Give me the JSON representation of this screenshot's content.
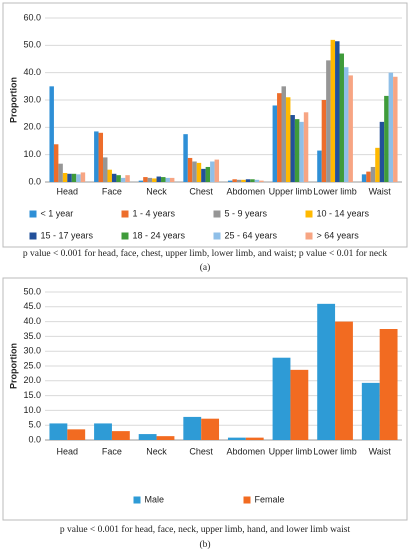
{
  "chart_data": [
    {
      "type": "bar",
      "y_label": "Proportion",
      "categories": [
        "Head",
        "Face",
        "Neck",
        "Chest",
        "Abdomen",
        "Upper limb",
        "Lower limb",
        "Waist"
      ],
      "series": [
        {
          "name": "< 1 year",
          "color": "#2e8fd6",
          "values": [
            35,
            18.5,
            0.5,
            17.5,
            0.5,
            28,
            11.5,
            2.8
          ]
        },
        {
          "name": "1 - 4 years",
          "color": "#ed6d2b",
          "values": [
            13.8,
            18,
            1.8,
            8.8,
            1,
            32.5,
            30,
            3.8
          ]
        },
        {
          "name": "5 - 9 years",
          "color": "#969696",
          "values": [
            6.7,
            9,
            1.5,
            7.5,
            0.8,
            35,
            44.5,
            5.5
          ]
        },
        {
          "name": "10 - 14 years",
          "color": "#ffb900",
          "values": [
            3.3,
            4.5,
            1.3,
            7,
            0.8,
            31,
            52,
            12.5
          ]
        },
        {
          "name": "15 - 17 years",
          "color": "#22509a",
          "values": [
            3,
            3,
            2,
            4.8,
            1,
            24.5,
            51.5,
            22
          ]
        },
        {
          "name": "18 - 24 years",
          "color": "#3f9b3a",
          "values": [
            3,
            2.5,
            1.8,
            5.5,
            1,
            23,
            47,
            31.5
          ]
        },
        {
          "name": "25 - 64 years",
          "color": "#8fbfe8",
          "values": [
            2.8,
            1.5,
            1.5,
            7.5,
            0.8,
            22,
            42,
            40
          ]
        },
        {
          "name": "> 64 years",
          "color": "#f7a583",
          "values": [
            3.5,
            2.5,
            1.5,
            8.2,
            0.5,
            25.5,
            39,
            38.5
          ]
        }
      ],
      "ylim": [
        0,
        60
      ],
      "yticks": [
        {
          "value": 0,
          "label": "0.0"
        },
        {
          "value": 10,
          "label": "10.0"
        },
        {
          "value": 20,
          "label": "20.0"
        },
        {
          "value": 30,
          "label": "30.0"
        },
        {
          "value": 40,
          "label": "40.0"
        },
        {
          "value": 50,
          "label": "50.0"
        },
        {
          "value": 60,
          "label": "60.0"
        }
      ],
      "grid": true,
      "legend": "bottom",
      "caption": "p value < 0.001 for head, face, chest, upper limb, lower limb, and waist; p value < 0.01 for neck",
      "panel_label": "(a)"
    },
    {
      "type": "bar",
      "y_label": "Proportion",
      "categories": [
        "Head",
        "Face",
        "Neck",
        "Chest",
        "Abdomen",
        "Upper limb",
        "Lower limb",
        "Waist"
      ],
      "series": [
        {
          "name": "Male",
          "color": "#2e9bd6",
          "values": [
            5.6,
            5.6,
            2,
            7.8,
            0.8,
            27.8,
            46,
            19.3
          ]
        },
        {
          "name": "Female",
          "color": "#f26b21",
          "values": [
            3.6,
            3,
            1.3,
            7.2,
            0.8,
            23.7,
            40,
            37.5
          ]
        }
      ],
      "ylim": [
        0,
        50
      ],
      "yticks": [
        {
          "value": 0,
          "label": "0.0"
        },
        {
          "value": 5,
          "label": "5.0"
        },
        {
          "value": 10,
          "label": "10.0"
        },
        {
          "value": 15,
          "label": "15.0"
        },
        {
          "value": 20,
          "label": "20.0"
        },
        {
          "value": 25,
          "label": "25.0"
        },
        {
          "value": 30,
          "label": "30.0"
        },
        {
          "value": 35,
          "label": "35.0"
        },
        {
          "value": 40,
          "label": "40.0"
        },
        {
          "value": 45,
          "label": "45.0"
        },
        {
          "value": 50,
          "label": "50.0"
        }
      ],
      "grid": true,
      "legend": "bottom",
      "caption": "p value < 0.001 for head, face, neck, upper limb, hand, and lower limb waist",
      "panel_label": "(b)"
    }
  ]
}
